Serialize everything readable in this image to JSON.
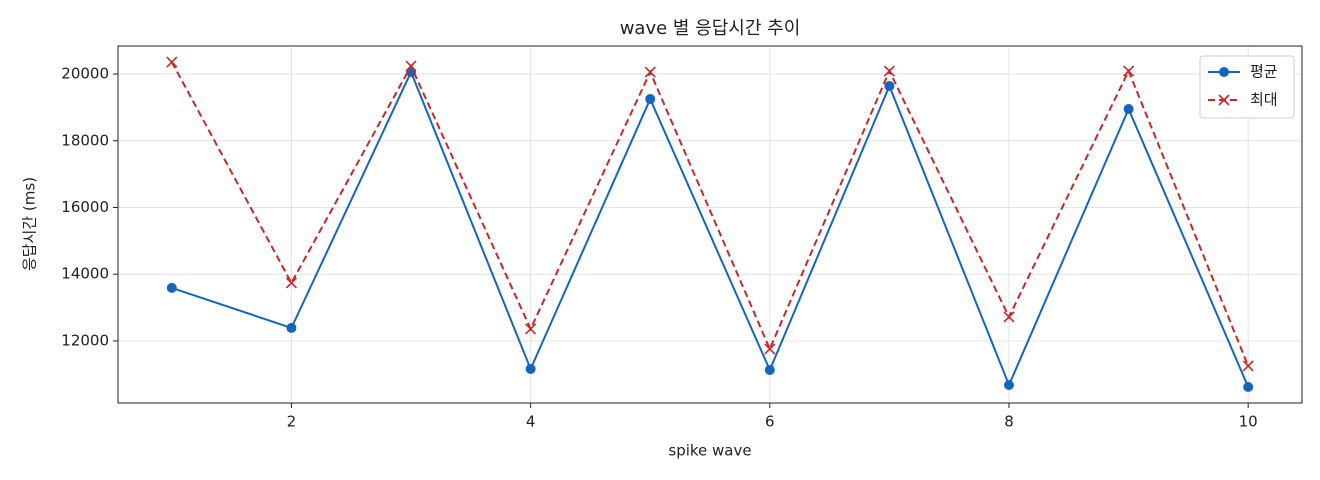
{
  "chart_data": {
    "type": "line",
    "title": "wave 별 응답시간 추이",
    "xlabel": "spike wave",
    "ylabel": "응답시간 (ms)",
    "x": [
      1,
      2,
      3,
      4,
      5,
      6,
      7,
      8,
      9,
      10
    ],
    "series": [
      {
        "name": "평균",
        "color": "#1565c0",
        "linestyle": "solid",
        "marker": "o",
        "values": [
          13590,
          12390,
          20060,
          11160,
          19250,
          11130,
          19640,
          10680,
          18950,
          10620
        ]
      },
      {
        "name": "최대",
        "color": "#c62828",
        "linestyle": "dashed",
        "marker": "x",
        "values": [
          20360,
          13740,
          20240,
          12360,
          20060,
          11760,
          20090,
          12720,
          20090,
          11250
        ]
      }
    ],
    "xlim": [
      0.55,
      10.45
    ],
    "xticks": [
      2,
      4,
      6,
      8,
      10
    ],
    "ylim": [
      10140,
      20840
    ],
    "yticks": [
      12000,
      14000,
      16000,
      18000,
      20000
    ],
    "grid": true,
    "legend": "upper right"
  }
}
